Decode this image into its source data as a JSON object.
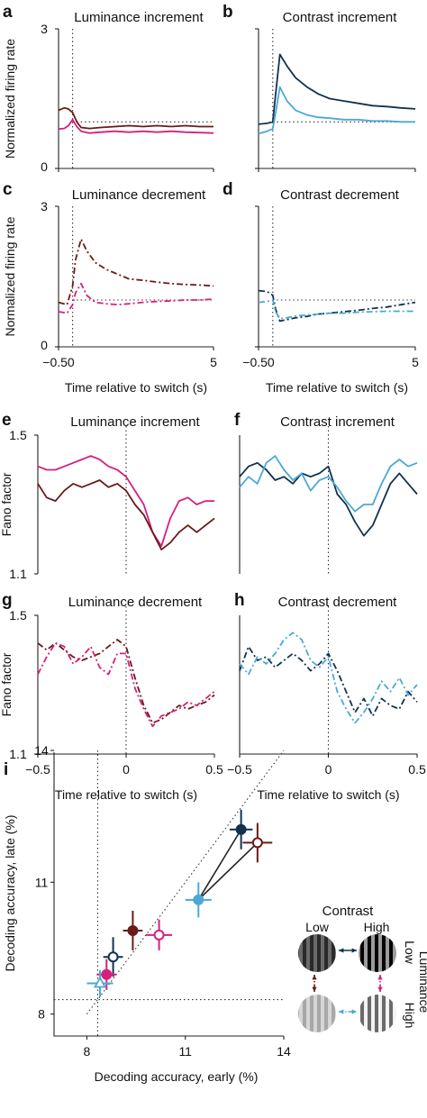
{
  "colors": {
    "lum_inc_dark": "#6b1a1a",
    "lum_inc_pink": "#d5207a",
    "con_dark": "#11324f",
    "con_light": "#4aa9d6",
    "axis": "#222222"
  },
  "firing_panels": {
    "a": {
      "label": "a",
      "title": "Luminance increment"
    },
    "b": {
      "label": "b",
      "title": "Contrast increment"
    },
    "c": {
      "label": "c",
      "title": "Luminance decrement"
    },
    "d": {
      "label": "d",
      "title": "Contrast decrement"
    },
    "ylabel": "Normalized firing rate",
    "xlabel": "Time relative to switch (s)",
    "ytick_top": "3",
    "ytick_bottom": "0",
    "xtick_left": "−0.50",
    "xtick_right": "5"
  },
  "fano_panels": {
    "e": {
      "label": "e",
      "title": "Luminance increment"
    },
    "f": {
      "label": "f",
      "title": "Contrast increment"
    },
    "g": {
      "label": "g",
      "title": "Luminance decrement"
    },
    "h": {
      "label": "h",
      "title": "Contrast decrement"
    },
    "ylabel": "Fano factor",
    "xlabel": "Time relative to switch (s)",
    "ytick_top": "1.5",
    "ytick_bottom": "1.1",
    "xticks": [
      "−0.5",
      "0",
      "0.5"
    ]
  },
  "panel_i": {
    "label": "i",
    "xlabel": "Decoding accuracy, early (%)",
    "ylabel": "Decoding accuracy, late (%)",
    "xticks": [
      "8",
      "11",
      "14"
    ],
    "yticks": [
      "8",
      "11",
      "14"
    ]
  },
  "legend": {
    "title": "Contrast",
    "low": "Low",
    "high": "High",
    "lum_low": "Low",
    "lum_title": "Luminance",
    "lum_high": "High"
  },
  "chart_data": [
    {
      "panel": "a",
      "type": "line",
      "ylim": [
        0,
        3
      ],
      "xlim": [
        -0.5,
        5
      ],
      "series": [
        {
          "color": "#6b1a1a",
          "style": "solid",
          "x": [
            -0.5,
            -0.3,
            -0.15,
            0,
            0.15,
            0.3,
            0.6,
            1,
            1.5,
            2,
            2.5,
            3,
            3.5,
            4,
            4.5,
            5
          ],
          "y": [
            1.25,
            1.3,
            1.28,
            1.2,
            1.0,
            0.88,
            0.86,
            0.88,
            0.9,
            0.92,
            0.9,
            0.92,
            0.9,
            0.92,
            0.9,
            0.9
          ]
        },
        {
          "color": "#d5207a",
          "style": "solid",
          "x": [
            -0.5,
            -0.3,
            -0.15,
            0,
            0.15,
            0.3,
            0.6,
            1,
            1.5,
            2,
            2.5,
            3,
            3.5,
            4,
            4.5,
            5
          ],
          "y": [
            0.85,
            0.86,
            0.92,
            1.05,
            0.9,
            0.8,
            0.76,
            0.78,
            0.8,
            0.78,
            0.8,
            0.78,
            0.8,
            0.78,
            0.77,
            0.76
          ]
        }
      ]
    },
    {
      "panel": "b",
      "type": "line",
      "ylim": [
        0,
        3
      ],
      "xlim": [
        -0.5,
        5
      ],
      "series": [
        {
          "color": "#11324f",
          "style": "solid",
          "x": [
            -0.5,
            -0.2,
            0,
            0.1,
            0.25,
            0.5,
            0.8,
            1.2,
            1.6,
            2,
            2.5,
            3,
            3.5,
            4,
            4.5,
            5
          ],
          "y": [
            0.95,
            0.97,
            1.0,
            1.6,
            2.45,
            2.2,
            1.95,
            1.75,
            1.6,
            1.5,
            1.45,
            1.4,
            1.35,
            1.33,
            1.3,
            1.28
          ]
        },
        {
          "color": "#4aa9d6",
          "style": "solid",
          "x": [
            -0.5,
            -0.2,
            0,
            0.1,
            0.25,
            0.5,
            0.8,
            1.2,
            1.6,
            2,
            2.5,
            3,
            3.5,
            4,
            4.5,
            5
          ],
          "y": [
            0.75,
            0.8,
            0.85,
            1.2,
            1.75,
            1.45,
            1.25,
            1.15,
            1.1,
            1.08,
            1.05,
            1.05,
            1.02,
            1.02,
            1.0,
            1.0
          ]
        }
      ]
    },
    {
      "panel": "c",
      "type": "line",
      "ylim": [
        0,
        3
      ],
      "xlim": [
        -0.5,
        5
      ],
      "series": [
        {
          "color": "#6b1a1a",
          "style": "dashdot",
          "x": [
            -0.5,
            -0.2,
            0,
            0.1,
            0.3,
            0.5,
            0.8,
            1.2,
            1.6,
            2,
            2.5,
            3,
            3.5,
            4,
            4.5,
            5
          ],
          "y": [
            0.95,
            0.9,
            1.3,
            1.85,
            2.3,
            2.05,
            1.8,
            1.65,
            1.55,
            1.45,
            1.42,
            1.38,
            1.35,
            1.33,
            1.32,
            1.3
          ]
        },
        {
          "color": "#d5207a",
          "style": "dashdot",
          "x": [
            -0.5,
            -0.2,
            0,
            0.1,
            0.3,
            0.5,
            0.8,
            1.2,
            1.6,
            2,
            2.5,
            3,
            3.5,
            4,
            4.5,
            5
          ],
          "y": [
            0.75,
            0.72,
            0.9,
            1.15,
            1.35,
            1.1,
            0.95,
            0.92,
            0.9,
            0.92,
            0.95,
            0.97,
            0.98,
            1.0,
            1.0,
            1.02
          ]
        }
      ]
    },
    {
      "panel": "d",
      "type": "line",
      "ylim": [
        0,
        3
      ],
      "xlim": [
        -0.5,
        5
      ],
      "series": [
        {
          "color": "#11324f",
          "style": "dashdot",
          "x": [
            -0.5,
            -0.2,
            0,
            0.1,
            0.25,
            0.5,
            0.8,
            1.2,
            1.6,
            2,
            2.5,
            3,
            3.5,
            4,
            4.5,
            5
          ],
          "y": [
            1.2,
            1.18,
            1.1,
            0.8,
            0.55,
            0.58,
            0.62,
            0.65,
            0.7,
            0.72,
            0.75,
            0.78,
            0.82,
            0.85,
            0.9,
            0.95
          ]
        },
        {
          "color": "#4aa9d6",
          "style": "dashdot",
          "x": [
            -0.5,
            -0.2,
            0,
            0.1,
            0.25,
            0.5,
            0.8,
            1.2,
            1.6,
            2,
            2.5,
            3,
            3.5,
            4,
            4.5,
            5
          ],
          "y": [
            0.95,
            0.97,
            1.0,
            0.75,
            0.6,
            0.62,
            0.66,
            0.68,
            0.7,
            0.72,
            0.72,
            0.74,
            0.75,
            0.76,
            0.76,
            0.76
          ]
        }
      ]
    },
    {
      "panel": "e",
      "type": "line",
      "ylim": [
        1.1,
        1.5
      ],
      "xlim": [
        -0.5,
        0.5
      ],
      "series": [
        {
          "color": "#d5207a",
          "style": "solid",
          "x": [
            -0.5,
            -0.45,
            -0.4,
            -0.35,
            -0.3,
            -0.25,
            -0.2,
            -0.15,
            -0.1,
            -0.05,
            0,
            0.05,
            0.1,
            0.15,
            0.2,
            0.25,
            0.3,
            0.35,
            0.4,
            0.45,
            0.5
          ],
          "y": [
            1.41,
            1.4,
            1.4,
            1.41,
            1.42,
            1.43,
            1.44,
            1.43,
            1.41,
            1.4,
            1.38,
            1.34,
            1.3,
            1.22,
            1.18,
            1.26,
            1.31,
            1.32,
            1.3,
            1.31,
            1.31
          ]
        },
        {
          "color": "#6b1a1a",
          "style": "solid",
          "x": [
            -0.5,
            -0.45,
            -0.4,
            -0.35,
            -0.3,
            -0.25,
            -0.2,
            -0.15,
            -0.1,
            -0.05,
            0,
            0.05,
            0.1,
            0.15,
            0.2,
            0.25,
            0.3,
            0.35,
            0.4,
            0.45,
            0.5
          ],
          "y": [
            1.36,
            1.32,
            1.31,
            1.34,
            1.36,
            1.35,
            1.36,
            1.37,
            1.35,
            1.36,
            1.34,
            1.3,
            1.27,
            1.22,
            1.17,
            1.19,
            1.22,
            1.24,
            1.22,
            1.24,
            1.26
          ]
        }
      ]
    },
    {
      "panel": "f",
      "type": "line",
      "ylim": [
        1.1,
        1.5
      ],
      "xlim": [
        -0.5,
        0.5
      ],
      "series": [
        {
          "color": "#11324f",
          "style": "solid",
          "x": [
            -0.5,
            -0.45,
            -0.4,
            -0.35,
            -0.3,
            -0.25,
            -0.2,
            -0.15,
            -0.1,
            -0.05,
            0,
            0.05,
            0.1,
            0.15,
            0.2,
            0.25,
            0.3,
            0.35,
            0.4,
            0.45,
            0.5
          ],
          "y": [
            1.38,
            1.41,
            1.42,
            1.4,
            1.37,
            1.38,
            1.36,
            1.39,
            1.38,
            1.39,
            1.41,
            1.33,
            1.3,
            1.25,
            1.21,
            1.24,
            1.3,
            1.36,
            1.39,
            1.36,
            1.33
          ]
        },
        {
          "color": "#4aa9d6",
          "style": "solid",
          "x": [
            -0.5,
            -0.45,
            -0.4,
            -0.35,
            -0.3,
            -0.25,
            -0.2,
            -0.15,
            -0.1,
            -0.05,
            0,
            0.05,
            0.1,
            0.15,
            0.2,
            0.25,
            0.3,
            0.35,
            0.4,
            0.45,
            0.5
          ],
          "y": [
            1.35,
            1.38,
            1.36,
            1.42,
            1.44,
            1.4,
            1.37,
            1.39,
            1.34,
            1.37,
            1.38,
            1.35,
            1.31,
            1.28,
            1.3,
            1.3,
            1.36,
            1.41,
            1.43,
            1.41,
            1.42
          ]
        }
      ]
    },
    {
      "panel": "g",
      "type": "line",
      "ylim": [
        1.1,
        1.5
      ],
      "xlim": [
        -0.5,
        0.5
      ],
      "series": [
        {
          "color": "#6b1a1a",
          "style": "dashdot",
          "x": [
            -0.5,
            -0.45,
            -0.4,
            -0.35,
            -0.3,
            -0.25,
            -0.2,
            -0.15,
            -0.1,
            -0.05,
            0,
            0.05,
            0.1,
            0.15,
            0.2,
            0.25,
            0.3,
            0.35,
            0.4,
            0.45,
            0.5
          ],
          "y": [
            1.42,
            1.4,
            1.42,
            1.4,
            1.38,
            1.37,
            1.38,
            1.39,
            1.41,
            1.43,
            1.41,
            1.32,
            1.24,
            1.19,
            1.2,
            1.22,
            1.24,
            1.23,
            1.24,
            1.25,
            1.27
          ]
        },
        {
          "color": "#d5207a",
          "style": "dashdot",
          "x": [
            -0.5,
            -0.45,
            -0.4,
            -0.35,
            -0.3,
            -0.25,
            -0.2,
            -0.15,
            -0.1,
            -0.05,
            0,
            0.05,
            0.1,
            0.15,
            0.2,
            0.25,
            0.3,
            0.35,
            0.4,
            0.45,
            0.5
          ],
          "y": [
            1.33,
            1.38,
            1.42,
            1.41,
            1.36,
            1.38,
            1.41,
            1.35,
            1.33,
            1.39,
            1.39,
            1.29,
            1.23,
            1.18,
            1.21,
            1.22,
            1.23,
            1.25,
            1.24,
            1.26,
            1.28
          ]
        }
      ]
    },
    {
      "panel": "h",
      "type": "line",
      "ylim": [
        1.1,
        1.5
      ],
      "xlim": [
        -0.5,
        0.5
      ],
      "series": [
        {
          "color": "#11324f",
          "style": "dashdot",
          "x": [
            -0.5,
            -0.45,
            -0.4,
            -0.35,
            -0.3,
            -0.25,
            -0.2,
            -0.15,
            -0.1,
            -0.05,
            0,
            0.05,
            0.1,
            0.15,
            0.2,
            0.25,
            0.3,
            0.35,
            0.4,
            0.45,
            0.5
          ],
          "y": [
            1.34,
            1.41,
            1.37,
            1.38,
            1.35,
            1.37,
            1.39,
            1.37,
            1.34,
            1.36,
            1.39,
            1.34,
            1.28,
            1.22,
            1.26,
            1.21,
            1.26,
            1.24,
            1.23,
            1.28,
            1.25
          ]
        },
        {
          "color": "#4aa9d6",
          "style": "dashdot",
          "x": [
            -0.5,
            -0.45,
            -0.4,
            -0.35,
            -0.3,
            -0.25,
            -0.2,
            -0.15,
            -0.1,
            -0.05,
            0,
            0.05,
            0.1,
            0.15,
            0.2,
            0.25,
            0.3,
            0.35,
            0.4,
            0.45,
            0.5
          ],
          "y": [
            1.36,
            1.33,
            1.38,
            1.36,
            1.39,
            1.43,
            1.45,
            1.43,
            1.37,
            1.35,
            1.38,
            1.28,
            1.23,
            1.19,
            1.22,
            1.26,
            1.31,
            1.28,
            1.32,
            1.27,
            1.3
          ]
        }
      ]
    },
    {
      "panel": "i",
      "type": "scatter",
      "xlim": [
        7,
        14
      ],
      "ylim": [
        7.5,
        14
      ],
      "points": [
        {
          "x": 12.7,
          "y": 12.2,
          "xerr": 0.35,
          "yerr": 0.45,
          "color": "#11324f",
          "filled": true,
          "marker": "circle"
        },
        {
          "x": 13.2,
          "y": 11.9,
          "xerr": 0.45,
          "yerr": 0.45,
          "color": "#6b1a1a",
          "filled": false,
          "marker": "circle"
        },
        {
          "x": 11.4,
          "y": 10.6,
          "xerr": 0.4,
          "yerr": 0.4,
          "color": "#4aa9d6",
          "filled": true,
          "marker": "circle"
        },
        {
          "x": 10.2,
          "y": 9.8,
          "xerr": 0.4,
          "yerr": 0.35,
          "color": "#d5207a",
          "filled": false,
          "marker": "circle"
        },
        {
          "x": 9.4,
          "y": 9.9,
          "xerr": 0.3,
          "yerr": 0.45,
          "color": "#6b1a1a",
          "filled": true,
          "marker": "circle"
        },
        {
          "x": 8.8,
          "y": 9.3,
          "xerr": 0.3,
          "yerr": 0.45,
          "color": "#11324f",
          "filled": false,
          "marker": "circle"
        },
        {
          "x": 8.6,
          "y": 8.9,
          "xerr": 0.3,
          "yerr": 0.35,
          "color": "#d5207a",
          "filled": true,
          "marker": "circle"
        },
        {
          "x": 8.4,
          "y": 8.7,
          "xerr": 0.4,
          "yerr": 0.3,
          "color": "#4aa9d6",
          "filled": false,
          "marker": "triangle"
        }
      ],
      "connections": [
        [
          0,
          2
        ],
        [
          1,
          2
        ]
      ],
      "reference_lines": {
        "diagonal": true,
        "x": 8.33,
        "y": 8.33
      }
    }
  ]
}
